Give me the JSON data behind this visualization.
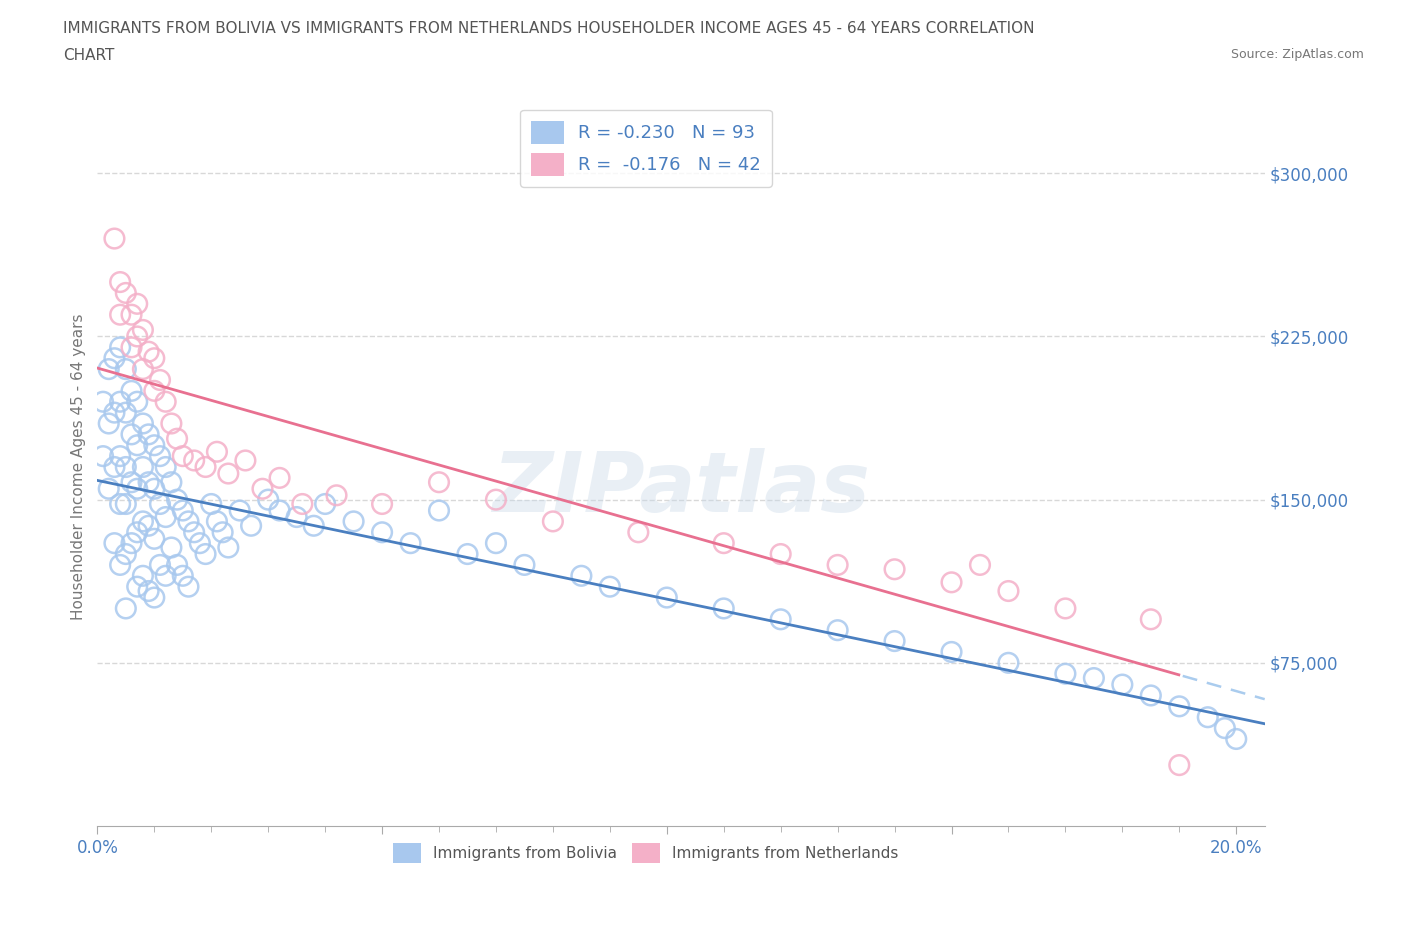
{
  "title_line1": "IMMIGRANTS FROM BOLIVIA VS IMMIGRANTS FROM NETHERLANDS HOUSEHOLDER INCOME AGES 45 - 64 YEARS CORRELATION",
  "title_line2": "CHART",
  "source": "Source: ZipAtlas.com",
  "ylabel": "Householder Income Ages 45 - 64 years",
  "x_min": 0.0,
  "x_max": 0.205,
  "y_min": 0,
  "y_max": 330000,
  "y_ticks": [
    75000,
    150000,
    225000,
    300000
  ],
  "y_tick_labels": [
    "$75,000",
    "$150,000",
    "$225,000",
    "$300,000"
  ],
  "x_ticks": [
    0.0,
    0.05,
    0.1,
    0.15,
    0.2
  ],
  "x_tick_labels": [
    "0.0%",
    "",
    "",
    "",
    "20.0%"
  ],
  "bolivia_color": "#a8c8ee",
  "netherlands_color": "#f4b0c8",
  "bolivia_line_color": "#4a7fc0",
  "netherlands_line_color": "#e87090",
  "dashed_line_color": "#aaccee",
  "R_bolivia": -0.23,
  "N_bolivia": 93,
  "R_netherlands": -0.176,
  "N_netherlands": 42,
  "legend_label_bolivia": "Immigrants from Bolivia",
  "legend_label_netherlands": "Immigrants from Netherlands",
  "watermark": "ZIPatlas",
  "background_color": "#ffffff",
  "grid_color": "#d8d8d8",
  "title_color": "#555555",
  "axis_label_color": "#777777",
  "tick_color": "#4a7fc0",
  "bolivia_scatter_x": [
    0.001,
    0.001,
    0.002,
    0.002,
    0.002,
    0.003,
    0.003,
    0.003,
    0.003,
    0.004,
    0.004,
    0.004,
    0.004,
    0.004,
    0.005,
    0.005,
    0.005,
    0.005,
    0.005,
    0.005,
    0.006,
    0.006,
    0.006,
    0.006,
    0.007,
    0.007,
    0.007,
    0.007,
    0.007,
    0.008,
    0.008,
    0.008,
    0.008,
    0.009,
    0.009,
    0.009,
    0.009,
    0.01,
    0.01,
    0.01,
    0.01,
    0.011,
    0.011,
    0.011,
    0.012,
    0.012,
    0.012,
    0.013,
    0.013,
    0.014,
    0.014,
    0.015,
    0.015,
    0.016,
    0.016,
    0.017,
    0.018,
    0.019,
    0.02,
    0.021,
    0.022,
    0.023,
    0.025,
    0.027,
    0.03,
    0.032,
    0.035,
    0.038,
    0.04,
    0.045,
    0.05,
    0.055,
    0.06,
    0.065,
    0.07,
    0.075,
    0.085,
    0.09,
    0.1,
    0.11,
    0.12,
    0.13,
    0.14,
    0.15,
    0.16,
    0.17,
    0.175,
    0.18,
    0.185,
    0.19,
    0.195,
    0.198,
    0.2
  ],
  "bolivia_scatter_y": [
    195000,
    170000,
    210000,
    185000,
    155000,
    215000,
    190000,
    165000,
    130000,
    220000,
    195000,
    170000,
    148000,
    120000,
    210000,
    190000,
    165000,
    148000,
    125000,
    100000,
    200000,
    180000,
    158000,
    130000,
    195000,
    175000,
    155000,
    135000,
    110000,
    185000,
    165000,
    140000,
    115000,
    180000,
    158000,
    138000,
    108000,
    175000,
    155000,
    132000,
    105000,
    170000,
    148000,
    120000,
    165000,
    142000,
    115000,
    158000,
    128000,
    150000,
    120000,
    145000,
    115000,
    140000,
    110000,
    135000,
    130000,
    125000,
    148000,
    140000,
    135000,
    128000,
    145000,
    138000,
    150000,
    145000,
    142000,
    138000,
    148000,
    140000,
    135000,
    130000,
    145000,
    125000,
    130000,
    120000,
    115000,
    110000,
    105000,
    100000,
    95000,
    90000,
    85000,
    80000,
    75000,
    70000,
    68000,
    65000,
    60000,
    55000,
    50000,
    45000,
    40000
  ],
  "netherlands_scatter_x": [
    0.003,
    0.004,
    0.004,
    0.005,
    0.006,
    0.006,
    0.007,
    0.007,
    0.008,
    0.008,
    0.009,
    0.01,
    0.01,
    0.011,
    0.012,
    0.013,
    0.014,
    0.015,
    0.017,
    0.019,
    0.021,
    0.023,
    0.026,
    0.029,
    0.032,
    0.036,
    0.042,
    0.05,
    0.06,
    0.07,
    0.08,
    0.095,
    0.11,
    0.12,
    0.13,
    0.14,
    0.15,
    0.155,
    0.16,
    0.17,
    0.185,
    0.19
  ],
  "netherlands_scatter_y": [
    270000,
    250000,
    235000,
    245000,
    235000,
    220000,
    240000,
    225000,
    228000,
    210000,
    218000,
    215000,
    200000,
    205000,
    195000,
    185000,
    178000,
    170000,
    168000,
    165000,
    172000,
    162000,
    168000,
    155000,
    160000,
    148000,
    152000,
    148000,
    158000,
    150000,
    140000,
    135000,
    130000,
    125000,
    120000,
    118000,
    112000,
    120000,
    108000,
    100000,
    95000,
    28000
  ]
}
